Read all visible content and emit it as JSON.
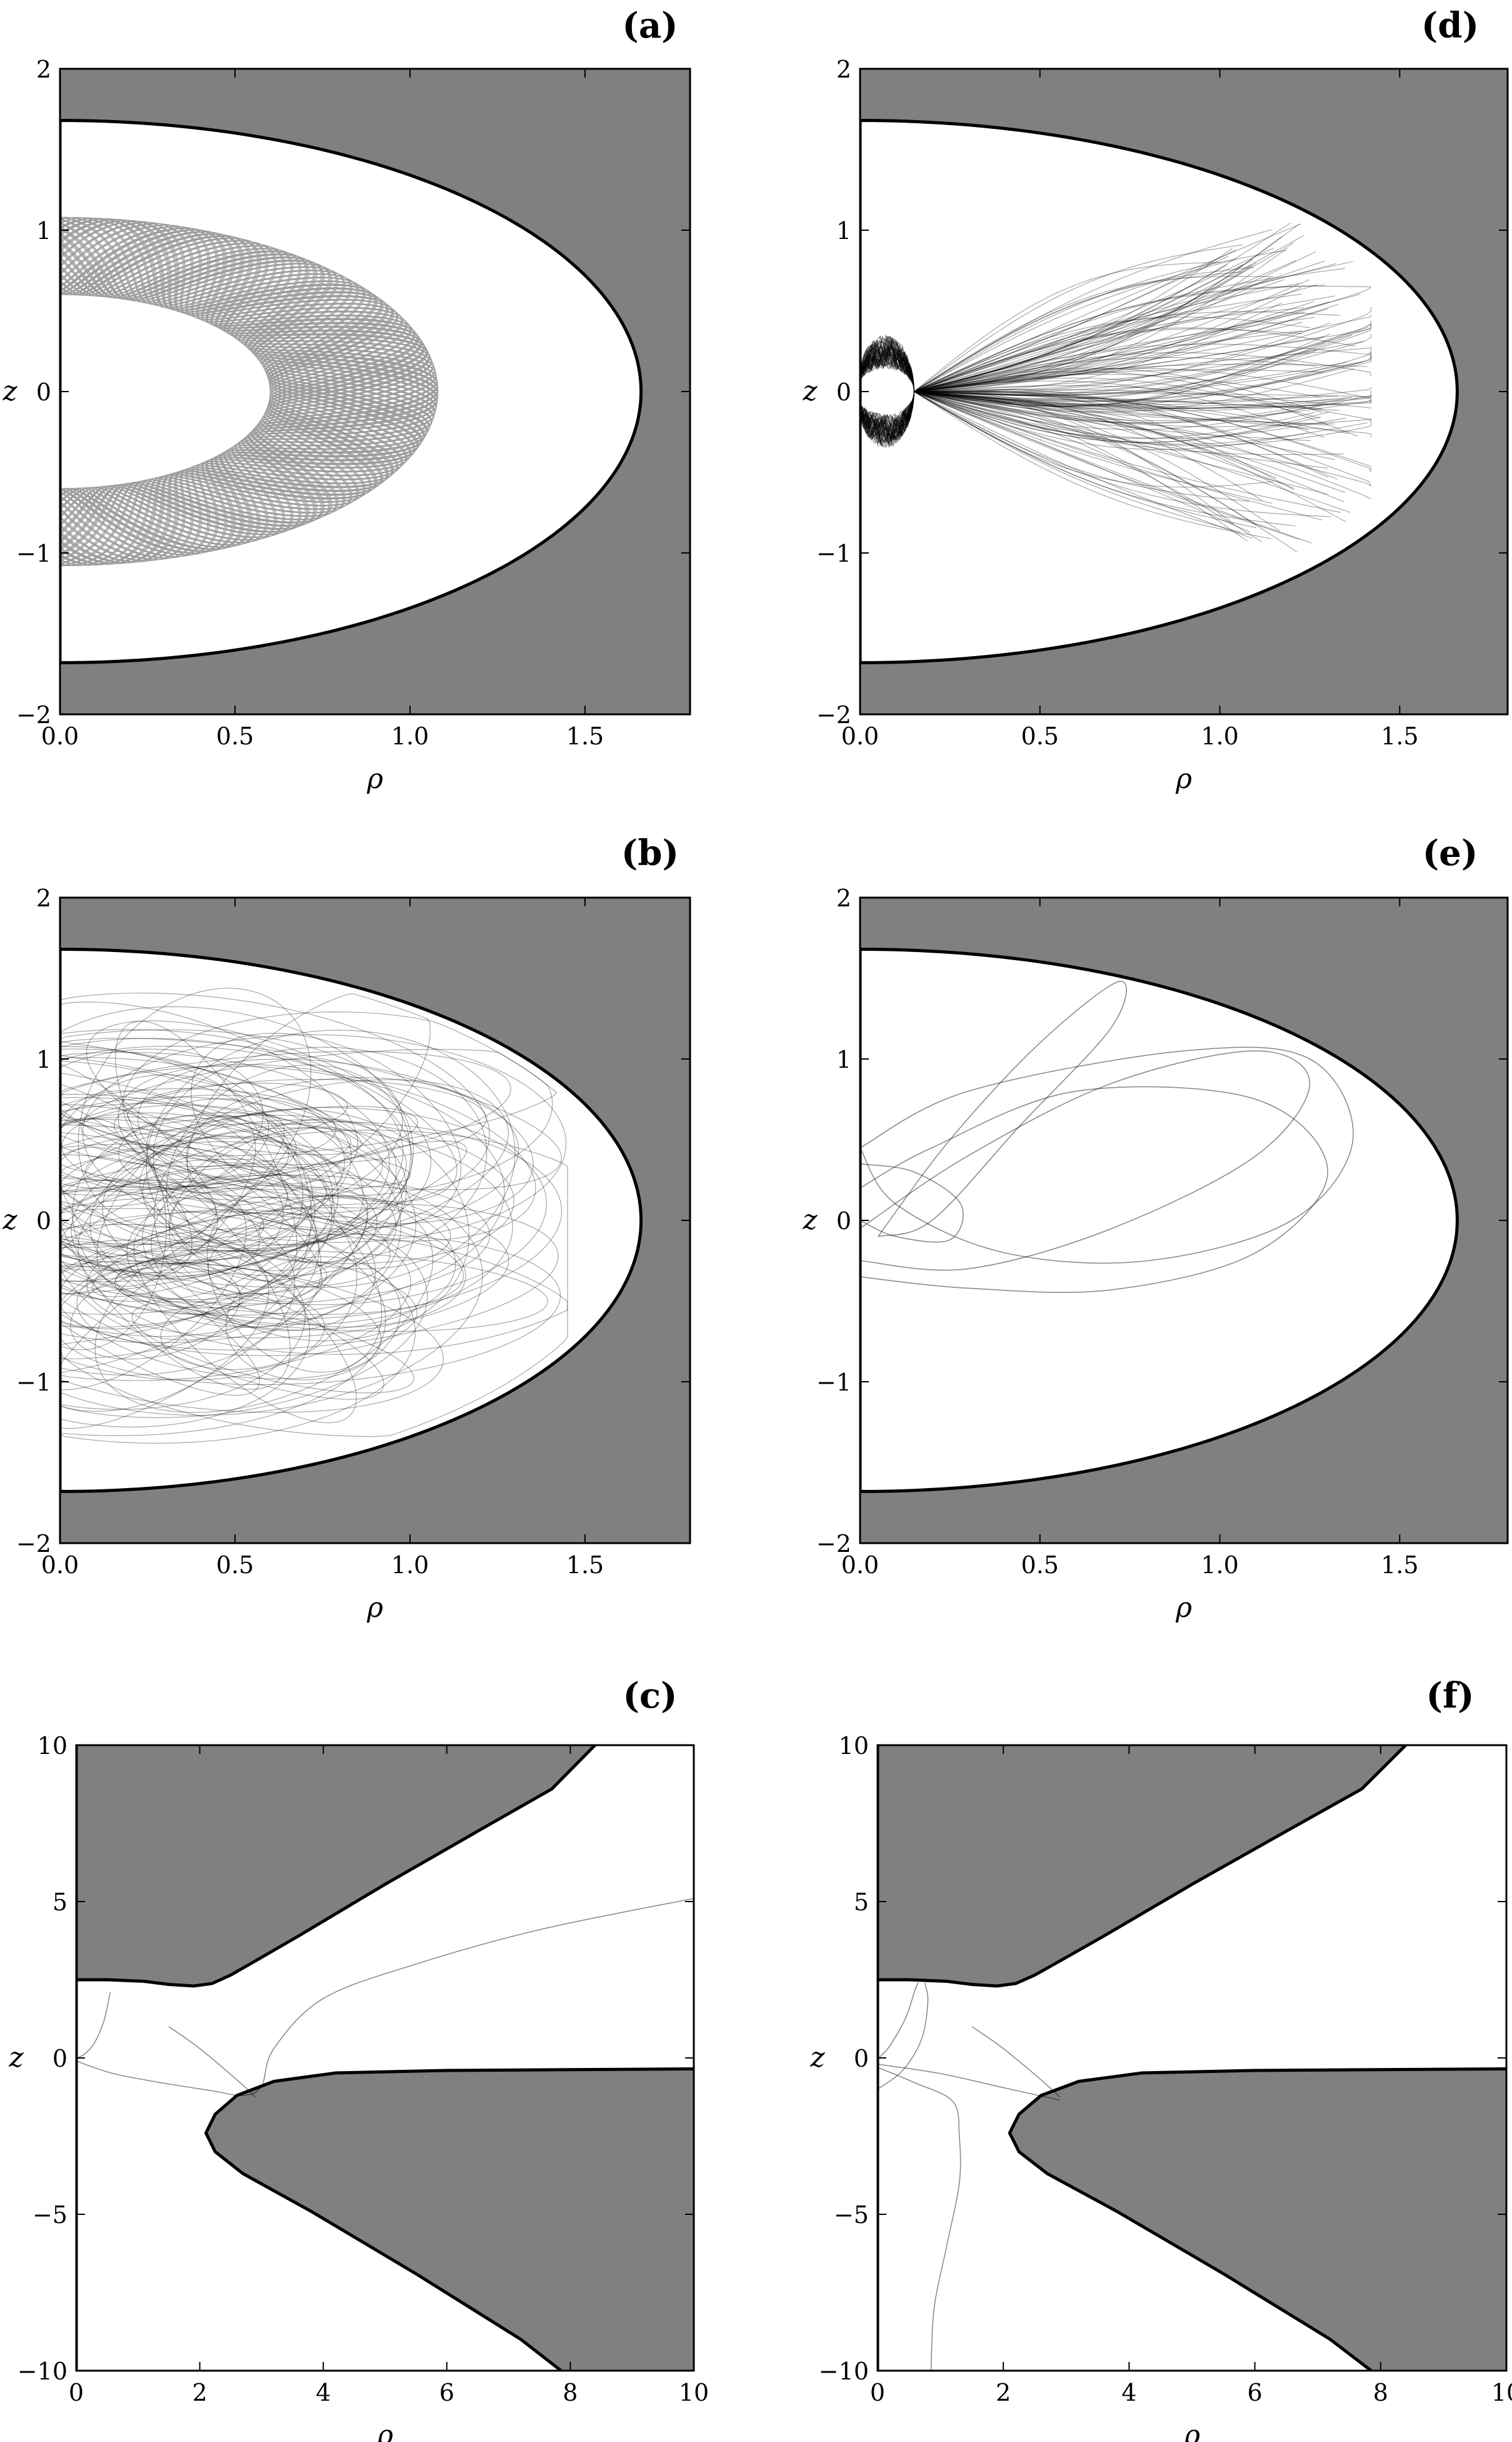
{
  "chart_data": [
    {
      "id": "a",
      "panel_label": "(a)",
      "type": "line",
      "xlabel": "ρ",
      "ylabel": "z",
      "xlim": [
        0,
        1.8
      ],
      "ylim": [
        -2,
        2
      ],
      "xticks": [
        "0.0",
        "0.5",
        "1.0",
        "1.5"
      ],
      "xtick_values": [
        0,
        0.5,
        1.0,
        1.5
      ],
      "yticks": [
        "-2",
        "-1",
        "0",
        "1",
        "2"
      ],
      "ytick_values": [
        -2,
        -1,
        0,
        1,
        2
      ],
      "region": "ellipse",
      "boundary": {
        "a": 1.66,
        "b": 1.68
      },
      "trajectory": {
        "kind": "annulus_quasiperiodic",
        "inner": 0.6,
        "outer": 1.08,
        "density": "dense"
      }
    },
    {
      "id": "b",
      "panel_label": "(b)",
      "type": "line",
      "xlabel": "ρ",
      "ylabel": "z",
      "xlim": [
        0,
        1.8
      ],
      "ylim": [
        -2,
        2
      ],
      "xticks": [
        "0.0",
        "0.5",
        "1.0",
        "1.5"
      ],
      "xtick_values": [
        0,
        0.5,
        1.0,
        1.5
      ],
      "yticks": [
        "-2",
        "-1",
        "0",
        "1",
        "2"
      ],
      "ytick_values": [
        -2,
        -1,
        0,
        1,
        2
      ],
      "region": "ellipse",
      "boundary": {
        "a": 1.66,
        "b": 1.68
      },
      "trajectory": {
        "kind": "chaotic_loops",
        "extent_rho": 1.45,
        "density": "dense"
      }
    },
    {
      "id": "c",
      "panel_label": "(c)",
      "type": "line",
      "xlabel": "ρ",
      "ylabel": "z",
      "xlim": [
        0,
        10
      ],
      "ylim": [
        -10,
        10
      ],
      "xticks": [
        "0",
        "2",
        "4",
        "6",
        "8",
        "10"
      ],
      "xtick_values": [
        0,
        2,
        4,
        6,
        8,
        10
      ],
      "yticks": [
        "-10",
        "-5",
        "0",
        "5",
        "10"
      ],
      "ytick_values": [
        -10,
        -5,
        0,
        5,
        10
      ],
      "region": "escape",
      "trajectory_points": [
        [
          [
            0.02,
            0.0
          ],
          [
            0.15,
            0.15
          ],
          [
            0.3,
            0.5
          ],
          [
            0.45,
            1.2
          ],
          [
            0.55,
            2.1
          ]
        ],
        [
          [
            0.0,
            -0.1
          ],
          [
            0.6,
            -0.5
          ],
          [
            1.4,
            -0.8
          ],
          [
            2.2,
            -1.05
          ],
          [
            2.7,
            -1.2
          ],
          [
            3.0,
            -0.9
          ],
          [
            3.2,
            0.3
          ],
          [
            4.0,
            1.9
          ],
          [
            5.5,
            3.0
          ],
          [
            7.5,
            4.1
          ],
          [
            10.0,
            5.1
          ]
        ],
        [
          [
            1.5,
            1.0
          ],
          [
            2.0,
            0.3
          ],
          [
            2.6,
            -0.7
          ],
          [
            2.9,
            -1.25
          ]
        ]
      ]
    },
    {
      "id": "d",
      "panel_label": "(d)",
      "type": "line",
      "xlabel": "ρ",
      "ylabel": "z",
      "xlim": [
        0,
        1.8
      ],
      "ylim": [
        -2,
        2
      ],
      "xticks": [
        "0.0",
        "0.5",
        "1.0",
        "1.5"
      ],
      "xtick_values": [
        0,
        0.5,
        1.0,
        1.5
      ],
      "yticks": [
        "-2",
        "-1",
        "0",
        "1",
        "2"
      ],
      "ytick_values": [
        -2,
        -1,
        0,
        1,
        2
      ],
      "region": "ellipse",
      "boundary": {
        "a": 1.66,
        "b": 1.68
      },
      "trajectory": {
        "kind": "fan_from_axis",
        "origin": [
          0.15,
          0.0
        ],
        "extent_rho": 1.42,
        "density": "dense"
      }
    },
    {
      "id": "e",
      "panel_label": "(e)",
      "type": "line",
      "xlabel": "ρ",
      "ylabel": "z",
      "xlim": [
        0,
        1.8
      ],
      "ylim": [
        -2,
        2
      ],
      "xticks": [
        "0.0",
        "0.5",
        "1.0",
        "1.5"
      ],
      "xtick_values": [
        0,
        0.5,
        1.0,
        1.5
      ],
      "yticks": [
        "-2",
        "-1",
        "0",
        "1",
        "2"
      ],
      "ytick_values": [
        -2,
        -1,
        0,
        1,
        2
      ],
      "region": "ellipse",
      "boundary": {
        "a": 1.66,
        "b": 1.68
      },
      "trajectory": {
        "kind": "few_loops",
        "extent_rho": 1.37,
        "density": "sparse"
      }
    },
    {
      "id": "f",
      "panel_label": "(f)",
      "type": "line",
      "xlabel": "ρ",
      "ylabel": "z",
      "xlim": [
        0,
        10
      ],
      "ylim": [
        -10,
        10
      ],
      "xticks": [
        "0",
        "2",
        "4",
        "6",
        "8",
        "10"
      ],
      "xtick_values": [
        0,
        2,
        4,
        6,
        8,
        10
      ],
      "yticks": [
        "-10",
        "-5",
        "0",
        "5",
        "10"
      ],
      "ytick_values": [
        -10,
        -5,
        0,
        5,
        10
      ],
      "region": "escape",
      "trajectory_points": [
        [
          [
            0.02,
            0.0
          ],
          [
            0.2,
            0.4
          ],
          [
            0.45,
            1.3
          ],
          [
            0.6,
            2.2
          ],
          [
            0.65,
            2.4
          ]
        ],
        [
          [
            0.0,
            -0.3
          ],
          [
            0.6,
            -0.8
          ],
          [
            1.2,
            -1.4
          ],
          [
            1.3,
            -2.5
          ],
          [
            1.3,
            -4.0
          ],
          [
            1.1,
            -6.0
          ],
          [
            0.9,
            -8.0
          ],
          [
            0.85,
            -10.0
          ]
        ],
        [
          [
            0.0,
            -1.0
          ],
          [
            0.4,
            -0.4
          ],
          [
            0.7,
            0.6
          ],
          [
            0.8,
            1.8
          ],
          [
            0.75,
            2.4
          ]
        ],
        [
          [
            0.0,
            -0.2
          ],
          [
            1.0,
            -0.5
          ],
          [
            2.0,
            -0.95
          ],
          [
            2.9,
            -1.35
          ]
        ],
        [
          [
            1.5,
            1.0
          ],
          [
            2.0,
            0.3
          ],
          [
            2.6,
            -0.7
          ],
          [
            2.9,
            -1.25
          ]
        ]
      ]
    }
  ]
}
